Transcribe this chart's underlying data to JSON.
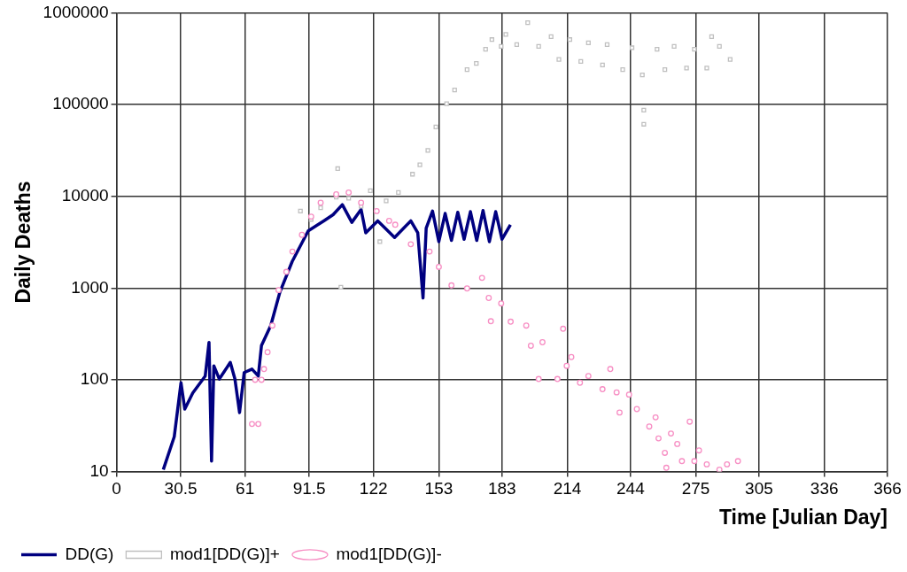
{
  "chart_data": {
    "type": "scatter",
    "xlabel": "Time [Julian Day]",
    "ylabel": "Daily Deaths",
    "log": "y",
    "grid": true,
    "legend": "bottom left",
    "xlim": [
      0,
      366
    ],
    "xticks": [
      0,
      30.5,
      61,
      91.5,
      122,
      153,
      183,
      214,
      244,
      275,
      305,
      336,
      366
    ],
    "ylim": [
      10,
      1000000
    ],
    "yticks": [
      10,
      100,
      1000,
      10000,
      100000,
      1000000
    ],
    "series": [
      {
        "name": "DD(G)",
        "type": "line",
        "color": "#000080",
        "marker": "none",
        "line_style": "solid",
        "x": [
          22.2,
          27.4,
          30.6,
          32.4,
          36.2,
          42.1,
          43.9,
          45.1,
          46.2,
          48.8,
          54,
          56.2,
          58.4,
          60.6,
          64.3,
          67.3,
          68.8,
          73.2,
          77.6,
          83.4,
          91,
          98.4,
          102.8,
          107.2,
          111.7,
          116.1,
          118.3,
          124,
          132,
          139.7,
          143,
          145.5,
          147,
          150,
          153,
          156,
          159,
          162,
          165,
          168,
          171,
          174,
          177,
          180,
          183,
          187
        ],
        "values": [
          10.5,
          24,
          93,
          48,
          72,
          110,
          256,
          13,
          142,
          102,
          155,
          102,
          44,
          120,
          131,
          110,
          236,
          390,
          910,
          1950,
          4200,
          5400,
          6300,
          8100,
          5200,
          7200,
          4000,
          5400,
          3560,
          5400,
          4000,
          780,
          4500,
          6900,
          3200,
          6500,
          3300,
          6700,
          3400,
          6800,
          3300,
          7000,
          3200,
          6800,
          3400,
          4900
        ]
      },
      {
        "name": "mod1[DD(G)]+",
        "color": "#c0c0c0",
        "marker": "square",
        "x": [
          87.3,
          92.4,
          96.9,
          104.3,
          105,
          106.5,
          110.2,
          116.1,
          120.5,
          125,
          128,
          133.8,
          140.5,
          144,
          147.8,
          151.6,
          156.7,
          160.5,
          166.4,
          170.8,
          175.2,
          178.2,
          182.6,
          184.8,
          190,
          195.2,
          200.4,
          206.3,
          210,
          215.2,
          220.4,
          224,
          230.7,
          232.9,
          240.3,
          244.7,
          249.6,
          250.3,
          250.3,
          256.6,
          260.3,
          264.7,
          270.6,
          274.3,
          280.2,
          282.5,
          286.2,
          291.3
        ],
        "values": [
          6900,
          5600,
          7500,
          9800,
          20000,
          1020,
          9500,
          7800,
          11500,
          3200,
          8900,
          11000,
          17400,
          22000,
          31600,
          57000,
          102000,
          144000,
          240000,
          280000,
          400000,
          510000,
          430000,
          580000,
          450000,
          780000,
          430000,
          550000,
          310000,
          510000,
          295000,
          470000,
          270000,
          450000,
          240000,
          415000,
          210000,
          87000,
          61000,
          400000,
          240000,
          430000,
          250000,
          400000,
          250000,
          550000,
          430000,
          310000
        ]
      },
      {
        "name": "mod1[DD(G)]-",
        "color": "#f78fc4",
        "marker": "circle",
        "x": [
          64.3,
          67.3,
          65.8,
          68.8,
          70,
          71.7,
          74,
          76.9,
          80.6,
          83.5,
          88,
          92.4,
          96.9,
          104.3,
          110.2,
          116.1,
          123.5,
          129.4,
          132.3,
          139.7,
          148.6,
          153,
          159,
          166.4,
          173.5,
          176.7,
          177.7,
          182.6,
          187.1,
          194.5,
          196.7,
          200.4,
          202.2,
          209.3,
          212,
          213.7,
          215.9,
          220,
          224,
          230.7,
          234.4,
          237.4,
          238.8,
          243.3,
          247,
          252.9,
          255.9,
          257.3,
          260.3,
          261,
          263.2,
          266.2,
          268.4,
          272.1,
          274.3,
          276.5,
          280.2,
          286.2,
          289.8,
          295
        ],
        "values": [
          33,
          33,
          100,
          100,
          131,
          200,
          390,
          950,
          1500,
          2500,
          3800,
          6000,
          8500,
          10500,
          11000,
          8500,
          6900,
          5400,
          4900,
          3000,
          2500,
          1700,
          1070,
          990,
          1290,
          780,
          435,
          680,
          430,
          390,
          235,
          102,
          257,
          102,
          360,
          142,
          177,
          93,
          110,
          79,
          131,
          73,
          44,
          69,
          48,
          31,
          39,
          23,
          16,
          11,
          26,
          20,
          13,
          35,
          13,
          17,
          12,
          10.5,
          12,
          13
        ]
      }
    ]
  }
}
